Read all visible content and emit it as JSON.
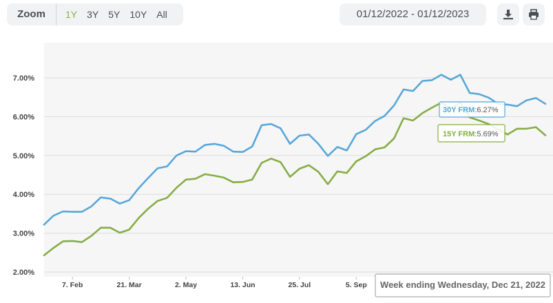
{
  "toolbar": {
    "zoom_label": "Zoom",
    "ranges": [
      "1Y",
      "3Y",
      "5Y",
      "10Y",
      "All"
    ],
    "active_range": "1Y",
    "date_range": "01/12/2022 - 01/12/2023",
    "download_icon": "download-icon",
    "print_icon": "print-icon"
  },
  "chart_data": {
    "type": "line",
    "x_label_ticks": [
      "7. Feb",
      "21. Mar",
      "2. May",
      "13. Jun",
      "25. Jul",
      "5. Sep"
    ],
    "y_ticks": [
      "2.00%",
      "3.00%",
      "4.00%",
      "5.00%",
      "6.00%",
      "7.00%"
    ],
    "ylim": [
      2.0,
      7.7
    ],
    "grid": true,
    "series": [
      {
        "name": "30Y FRM",
        "color": "#57a7d9",
        "values": [
          3.22,
          3.45,
          3.56,
          3.55,
          3.55,
          3.69,
          3.92,
          3.89,
          3.76,
          3.85,
          4.16,
          4.42,
          4.67,
          4.72,
          5.0,
          5.11,
          5.1,
          5.27,
          5.3,
          5.25,
          5.1,
          5.09,
          5.23,
          5.78,
          5.81,
          5.7,
          5.3,
          5.51,
          5.54,
          5.3,
          4.99,
          5.22,
          5.13,
          5.55,
          5.66,
          5.89,
          6.02,
          6.29,
          6.7,
          6.66,
          6.92,
          6.94,
          7.08,
          6.95,
          7.08,
          6.61,
          6.58,
          6.49,
          6.33,
          6.31,
          6.27,
          6.42,
          6.48,
          6.33
        ]
      },
      {
        "name": "15Y FRM",
        "color": "#86ad44",
        "values": [
          2.43,
          2.62,
          2.79,
          2.8,
          2.77,
          2.93,
          3.14,
          3.14,
          3.01,
          3.09,
          3.39,
          3.63,
          3.83,
          3.91,
          4.17,
          4.38,
          4.4,
          4.52,
          4.48,
          4.43,
          4.31,
          4.32,
          4.38,
          4.81,
          4.92,
          4.83,
          4.45,
          4.66,
          4.75,
          4.58,
          4.26,
          4.59,
          4.55,
          4.85,
          4.98,
          5.16,
          5.21,
          5.44,
          5.96,
          5.9,
          6.09,
          6.23,
          6.36,
          6.21,
          6.36,
          5.98,
          5.9,
          5.81,
          5.67,
          5.54,
          5.69,
          5.69,
          5.73,
          5.52
        ]
      }
    ],
    "tooltip": {
      "series_30y_label": "30Y FRM",
      "series_30y_value": ":6.27%",
      "series_15y_label": "15Y FRM",
      "series_15y_value": ":5.69%",
      "header": "Week ending Wednesday, Dec 21, 2022"
    }
  }
}
